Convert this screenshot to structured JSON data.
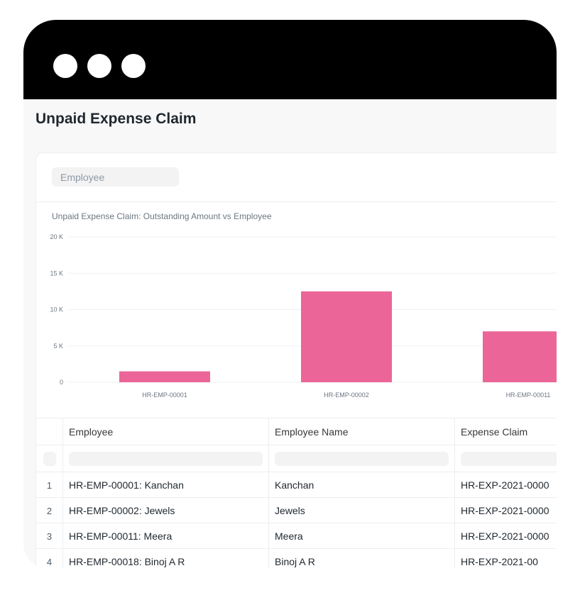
{
  "window": {
    "controls": [
      "circle-icon",
      "circle-icon",
      "circle-icon"
    ],
    "titlebar_color": "#000000"
  },
  "page": {
    "title": "Unpaid Expense Claim"
  },
  "filters": {
    "employee_placeholder": "Employee"
  },
  "chart_data": {
    "type": "bar",
    "title": "Unpaid Expense Claim: Outstanding Amount vs Employee",
    "xlabel": "",
    "ylabel": "",
    "categories": [
      "HR-EMP-00001",
      "HR-EMP-00002",
      "HR-EMP-00011"
    ],
    "values": [
      1500,
      12500,
      7000
    ],
    "ylim": [
      0,
      20000
    ],
    "yticks": [
      {
        "value": 20000,
        "label": "20 K"
      },
      {
        "value": 15000,
        "label": "15 K"
      },
      {
        "value": 10000,
        "label": "10 K"
      },
      {
        "value": 5000,
        "label": "5 K"
      },
      {
        "value": 0,
        "label": "0"
      }
    ],
    "bar_color": "#ec6598",
    "grid": true,
    "legend": "none"
  },
  "table": {
    "columns": [
      "Employee",
      "Employee Name",
      "Expense Claim"
    ],
    "rows": [
      {
        "index": "1",
        "employee": "HR-EMP-00001: Kanchan",
        "employee_name": "Kanchan",
        "expense_claim": "HR-EXP-2021-0000"
      },
      {
        "index": "2",
        "employee": "HR-EMP-00002: Jewels",
        "employee_name": "Jewels",
        "expense_claim": "HR-EXP-2021-0000"
      },
      {
        "index": "3",
        "employee": "HR-EMP-00011: Meera",
        "employee_name": "Meera",
        "expense_claim": "HR-EXP-2021-0000"
      },
      {
        "index": "4",
        "employee": "HR-EMP-00018: Binoj A R",
        "employee_name": "Binoj A R",
        "expense_claim": "HR-EXP-2021-00"
      }
    ]
  }
}
